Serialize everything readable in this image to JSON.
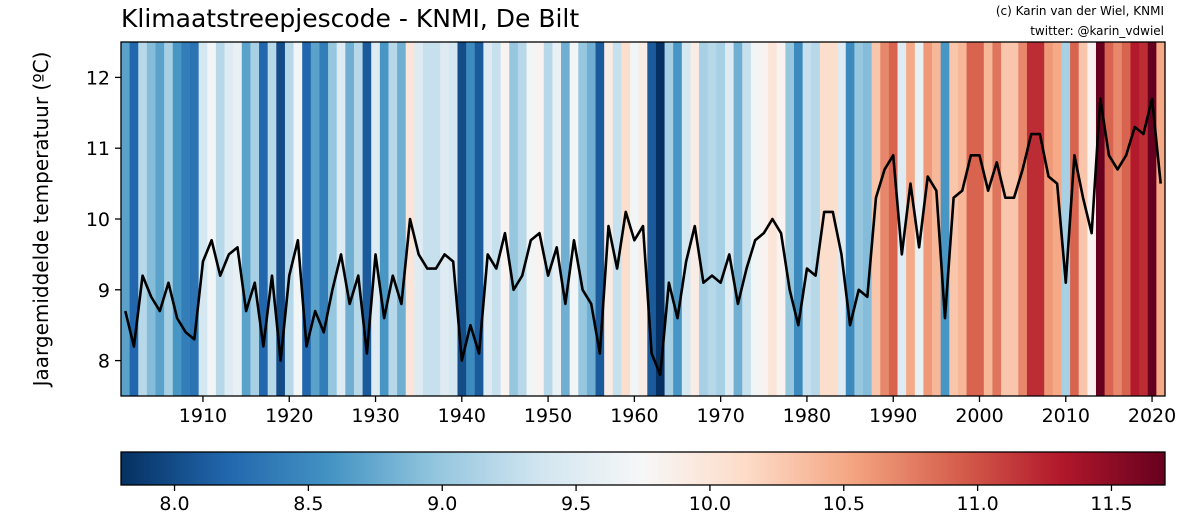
{
  "chart_data": {
    "type": "line",
    "title": "Klimaatstreepjescode - KNMI, De Bilt",
    "credit_line1": "(c) Karin van der Wiel, KNMI",
    "credit_line2": "twitter: @karin_vdwiel",
    "ylabel": "Jaargemiddelde temperatuur (ºC)",
    "xlabel": "",
    "xlim": [
      1901,
      2021
    ],
    "ylim": [
      7.5,
      12.5
    ],
    "x_ticks": [
      1910,
      1920,
      1930,
      1940,
      1950,
      1960,
      1970,
      1980,
      1990,
      2000,
      2010,
      2020
    ],
    "x_tick_labels": [
      "1910",
      "1920",
      "1930",
      "1940",
      "1950",
      "1960",
      "1970",
      "1980",
      "1990",
      "2000",
      "2010",
      "2020"
    ],
    "y_ticks": [
      8,
      9,
      10,
      11,
      12
    ],
    "y_tick_labels": [
      "8",
      "9",
      "10",
      "11",
      "12"
    ],
    "stripes": "background stripes colored by annual mean temperature",
    "colormap": "RdBu_r",
    "colorbar": {
      "range": [
        7.8,
        11.7
      ],
      "ticks": [
        8.0,
        8.5,
        9.0,
        9.5,
        10.0,
        10.5,
        11.0,
        11.5
      ],
      "tick_labels": [
        "8.0",
        "8.5",
        "9.0",
        "9.5",
        "10.0",
        "10.5",
        "11.0",
        "11.5"
      ],
      "stops": [
        "#053061",
        "#2166ac",
        "#4393c3",
        "#92c5de",
        "#d1e5f0",
        "#f7f7f7",
        "#fddbc7",
        "#f4a582",
        "#d6604d",
        "#b2182b",
        "#67001f"
      ]
    },
    "line_color": "#000000",
    "grid": false,
    "x": [
      1901,
      1902,
      1903,
      1904,
      1905,
      1906,
      1907,
      1908,
      1909,
      1910,
      1911,
      1912,
      1913,
      1914,
      1915,
      1916,
      1917,
      1918,
      1919,
      1920,
      1921,
      1922,
      1923,
      1924,
      1925,
      1926,
      1927,
      1928,
      1929,
      1930,
      1931,
      1932,
      1933,
      1934,
      1935,
      1936,
      1937,
      1938,
      1939,
      1940,
      1941,
      1942,
      1943,
      1944,
      1945,
      1946,
      1947,
      1948,
      1949,
      1950,
      1951,
      1952,
      1953,
      1954,
      1955,
      1956,
      1957,
      1958,
      1959,
      1960,
      1961,
      1962,
      1963,
      1964,
      1965,
      1966,
      1967,
      1968,
      1969,
      1970,
      1971,
      1972,
      1973,
      1974,
      1975,
      1976,
      1977,
      1978,
      1979,
      1980,
      1981,
      1982,
      1983,
      1984,
      1985,
      1986,
      1987,
      1988,
      1989,
      1990,
      1991,
      1992,
      1993,
      1994,
      1995,
      1996,
      1997,
      1998,
      1999,
      2000,
      2001,
      2002,
      2003,
      2004,
      2005,
      2006,
      2007,
      2008,
      2009,
      2010,
      2011,
      2012,
      2013,
      2014,
      2015,
      2016,
      2017,
      2018,
      2019,
      2020,
      2021
    ],
    "values": [
      8.7,
      8.2,
      9.2,
      8.9,
      8.7,
      9.1,
      8.6,
      8.4,
      8.3,
      9.4,
      9.7,
      9.2,
      9.5,
      9.6,
      8.7,
      9.1,
      8.2,
      9.2,
      8.0,
      9.2,
      9.7,
      8.2,
      8.7,
      8.4,
      9.0,
      9.5,
      8.8,
      9.2,
      8.1,
      9.5,
      8.6,
      9.2,
      8.8,
      10.0,
      9.5,
      9.3,
      9.3,
      9.5,
      9.4,
      8.0,
      8.5,
      8.1,
      9.5,
      9.3,
      9.8,
      9.0,
      9.2,
      9.7,
      9.8,
      9.2,
      9.6,
      8.8,
      9.7,
      9.0,
      8.8,
      8.1,
      9.9,
      9.3,
      10.1,
      9.7,
      9.9,
      8.1,
      7.8,
      9.1,
      8.6,
      9.4,
      9.9,
      9.1,
      9.2,
      9.1,
      9.5,
      8.8,
      9.3,
      9.7,
      9.8,
      10.0,
      9.8,
      9.0,
      8.5,
      9.3,
      9.2,
      10.1,
      10.1,
      9.5,
      8.5,
      9.0,
      8.9,
      10.3,
      10.7,
      10.9,
      9.5,
      10.5,
      9.6,
      10.6,
      10.4,
      8.6,
      10.3,
      10.4,
      10.9,
      10.9,
      10.4,
      10.8,
      10.3,
      10.3,
      10.7,
      11.2,
      11.2,
      10.6,
      10.5,
      9.1,
      10.9,
      10.3,
      9.8,
      11.7,
      10.9,
      10.7,
      10.9,
      11.3,
      11.2,
      11.7,
      10.5
    ]
  }
}
